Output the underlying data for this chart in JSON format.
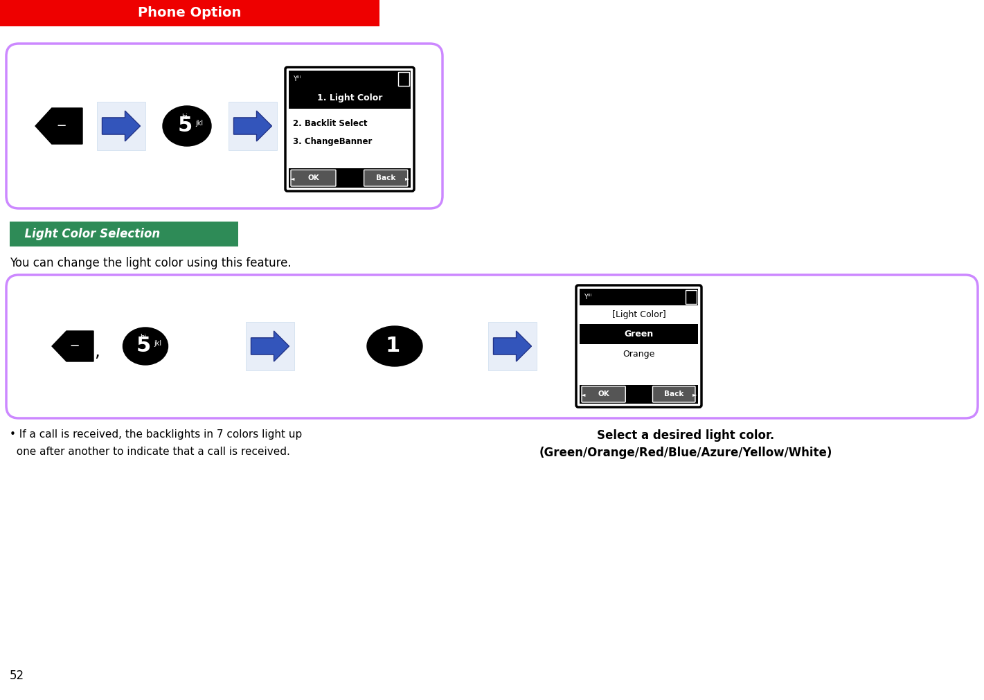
{
  "bg_color": "#ffffff",
  "header_bar_color": "#ee0000",
  "header_text": "Phone Option",
  "header_text_color": "#ffffff",
  "green_bar_color": "#2e8b57",
  "green_bar_text": "  Light Color Selection",
  "green_bar_text_color": "#ffffff",
  "box_border_color": "#cc88ff",
  "desc_text": "You can change the light color using this feature.",
  "bullet_line1": "• If a call is received, the backlights in 7 colors light up",
  "bullet_line2": "  one after another to indicate that a call is received.",
  "right_bold_line1": "Select a desired light color.",
  "right_bold_line2": "(Green/Orange/Red/Blue/Azure/Yellow/White)",
  "page_number": "52",
  "arrow_face": "#3355bb",
  "arrow_edge": "#223388"
}
